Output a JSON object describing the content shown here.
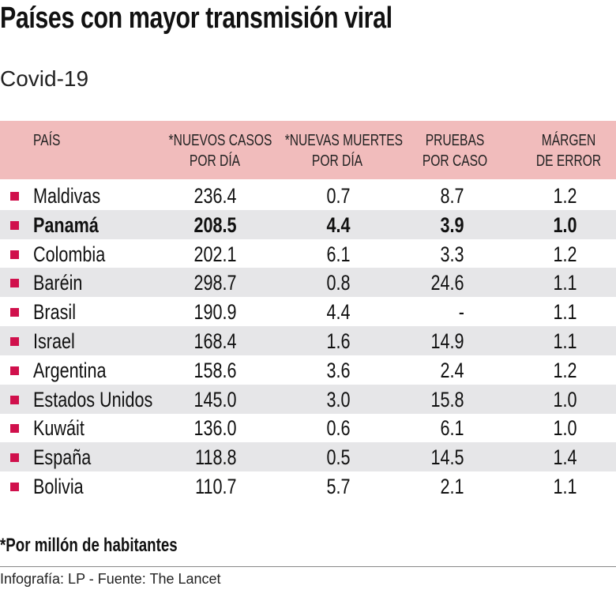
{
  "title": "Países con mayor transmisión viral",
  "subtitle": "Covid-19",
  "colors": {
    "header_bg": "#f1bcbc",
    "bullet": "#d0104c",
    "alt_row": "#e6e6e8"
  },
  "chart_data": {
    "type": "table",
    "columns": [
      {
        "line1": "PAÍS",
        "line2": ""
      },
      {
        "line1": "*NUEVOS CASOS",
        "line2": "POR DÍA"
      },
      {
        "line1": "*NUEVAS MUERTES",
        "line2": "POR DÍA"
      },
      {
        "line1": "PRUEBAS",
        "line2": "POR CASO"
      },
      {
        "line1": "MÁRGEN",
        "line2": "DE ERROR"
      }
    ],
    "rows": [
      {
        "country": "Maldivas",
        "cases": "236.4",
        "deaths": "0.7",
        "tests": "8.7",
        "margin": "1.2",
        "highlight": false
      },
      {
        "country": "Panamá",
        "cases": "208.5",
        "deaths": "4.4",
        "tests": "3.9",
        "margin": "1.0",
        "highlight": true
      },
      {
        "country": "Colombia",
        "cases": "202.1",
        "deaths": "6.1",
        "tests": "3.3",
        "margin": "1.2",
        "highlight": false
      },
      {
        "country": "Baréin",
        "cases": "298.7",
        "deaths": "0.8",
        "tests": "24.6",
        "margin": "1.1",
        "highlight": false
      },
      {
        "country": "Brasil",
        "cases": "190.9",
        "deaths": "4.4",
        "tests": "-",
        "margin": "1.1",
        "highlight": false
      },
      {
        "country": "Israel",
        "cases": "168.4",
        "deaths": "1.6",
        "tests": "14.9",
        "margin": "1.1",
        "highlight": false
      },
      {
        "country": "Argentina",
        "cases": "158.6",
        "deaths": "3.6",
        "tests": "2.4",
        "margin": "1.2",
        "highlight": false
      },
      {
        "country": "Estados Unidos",
        "cases": "145.0",
        "deaths": "3.0",
        "tests": "15.8",
        "margin": "1.0",
        "highlight": false
      },
      {
        "country": "Kuwáit",
        "cases": "136.0",
        "deaths": "0.6",
        "tests": "6.1",
        "margin": "1.0",
        "highlight": false
      },
      {
        "country": "España",
        "cases": "118.8",
        "deaths": "0.5",
        "tests": "14.5",
        "margin": "1.4",
        "highlight": false
      },
      {
        "country": "Bolivia",
        "cases": "110.7",
        "deaths": "5.7",
        "tests": "2.1",
        "margin": "1.1",
        "highlight": false
      }
    ]
  },
  "footnote": "*Por millón de habitantes",
  "credit": "Infografía: LP - Fuente: The Lancet"
}
